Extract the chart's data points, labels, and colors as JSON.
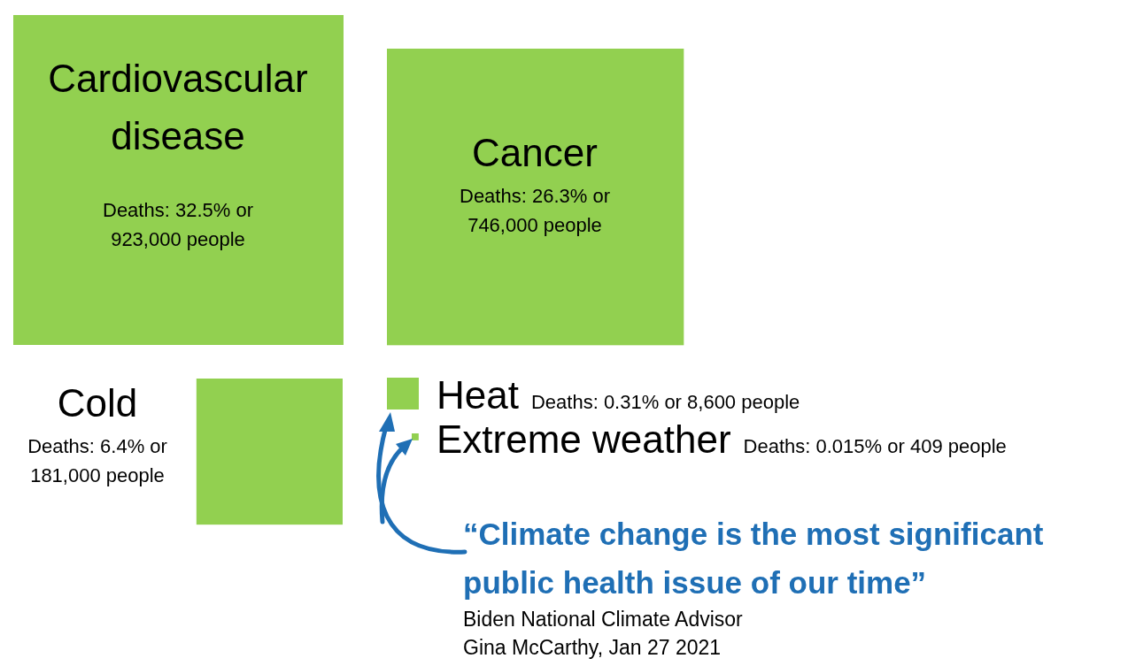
{
  "chart_data": {
    "type": "other",
    "categories": [
      "Cardiovascular disease",
      "Cancer",
      "Cold",
      "Heat",
      "Extreme weather"
    ],
    "values": [
      923000,
      746000,
      181000,
      8600,
      409
    ],
    "value_labels": [
      "Deaths: 32.5% or 923,000 people",
      "Deaths: 26.3% or 746,000 people",
      "Deaths: 6.4% or 181,000 people",
      "Deaths: 0.31% or 8,600 people",
      "Deaths: 0.015% or 409 people"
    ],
    "color": "#92d050",
    "annotations": [
      "“Climate change is the most significant public health issue of our time”",
      "Biden National Climate Advisor",
      "Gina McCarthy, Jan 27 2021"
    ]
  }
}
